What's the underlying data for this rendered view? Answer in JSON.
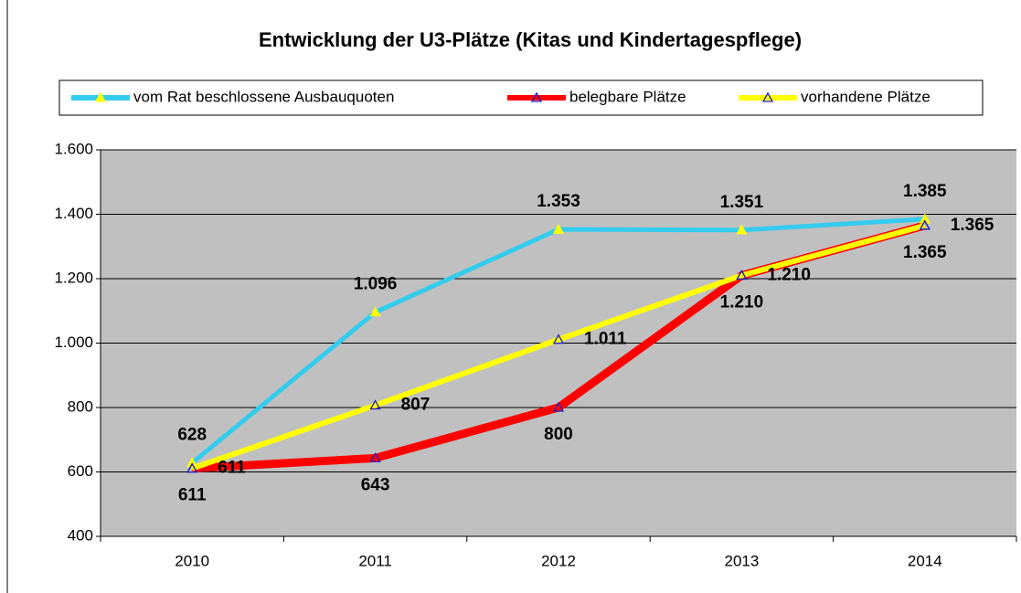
{
  "chart_data": {
    "type": "line",
    "title": "Entwicklung der U3-Plätze (Kitas und Kindertagespflege)",
    "categories": [
      "2010",
      "2011",
      "2012",
      "2013",
      "2014"
    ],
    "series": [
      {
        "name": "vom Rat beschlossene Ausbauquoten",
        "color": "#33ccee",
        "marker_color": "#ffff00",
        "marker_fill": true,
        "values": [
          628,
          1096,
          1353,
          1351,
          1385
        ],
        "value_labels": [
          "628",
          "1.096",
          "1.353",
          "1.351",
          "1.385"
        ]
      },
      {
        "name": "belegbare Plätze",
        "color": "#ff0000",
        "marker_color": "#2020c0",
        "marker_fill": false,
        "values": [
          611,
          643,
          800,
          1210,
          1365
        ],
        "value_labels": [
          "611",
          "643",
          "800",
          "1.210",
          "1.365"
        ]
      },
      {
        "name": "vorhandene Plätze",
        "color": "#ffff00",
        "marker_color": "#2020c0",
        "marker_fill": false,
        "values": [
          611,
          807,
          1011,
          1210,
          1365
        ],
        "value_labels": [
          "611",
          "807",
          "1.011",
          "1.210",
          "1.365"
        ]
      }
    ],
    "ylim": [
      400,
      1600
    ],
    "yticks": [
      400,
      600,
      800,
      {
        "value": 1000,
        "label": "1.000"
      },
      {
        "value": 1200,
        "label": "1.200"
      },
      {
        "value": 1400,
        "label": "1.400"
      },
      {
        "value": 1600,
        "label": "1.600"
      }
    ],
    "grid": true,
    "legend": "top"
  }
}
